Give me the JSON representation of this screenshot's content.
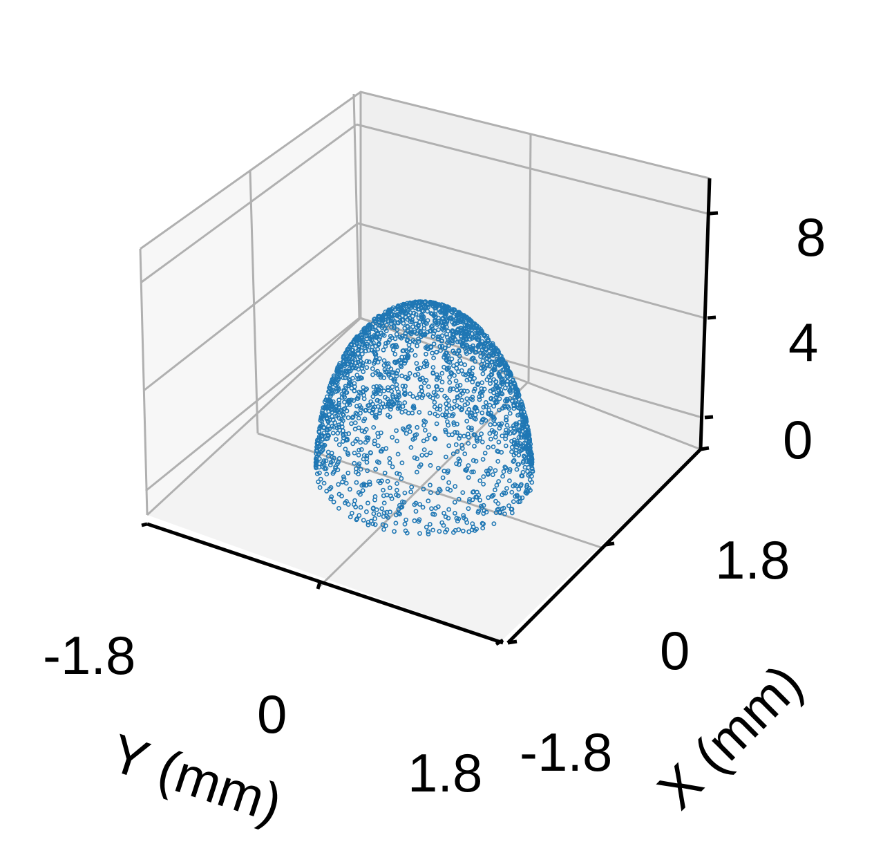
{
  "chart_data": {
    "type": "scatter3d",
    "title": "",
    "xlabel": "X (mm)",
    "ylabel": "Y (mm)",
    "zlabel": "",
    "x_ticks": [
      "-1.8",
      "0",
      "1.8"
    ],
    "y_ticks": [
      "-1.8",
      "0",
      "1.8"
    ],
    "z_ticks": [
      "0",
      "4",
      "8"
    ],
    "xlim": [
      -2.4,
      2.4
    ],
    "ylim": [
      -2.4,
      2.4
    ],
    "zlim": [
      -1,
      10
    ],
    "grid": true,
    "marker": "hollow-circle",
    "series": [
      {
        "shape": "hemisphere-shell",
        "radius_xy": 1.8,
        "height_z": 5.5,
        "color": "#1f77b4",
        "point_count": 2200
      }
    ]
  },
  "colors": {
    "pane_left": "#f7f7f7",
    "pane_right": "#efefef",
    "pane_floor": "#f3f3f3",
    "grid": "#b0b0b0",
    "axis": "#000000",
    "points": "#1f77b4"
  }
}
